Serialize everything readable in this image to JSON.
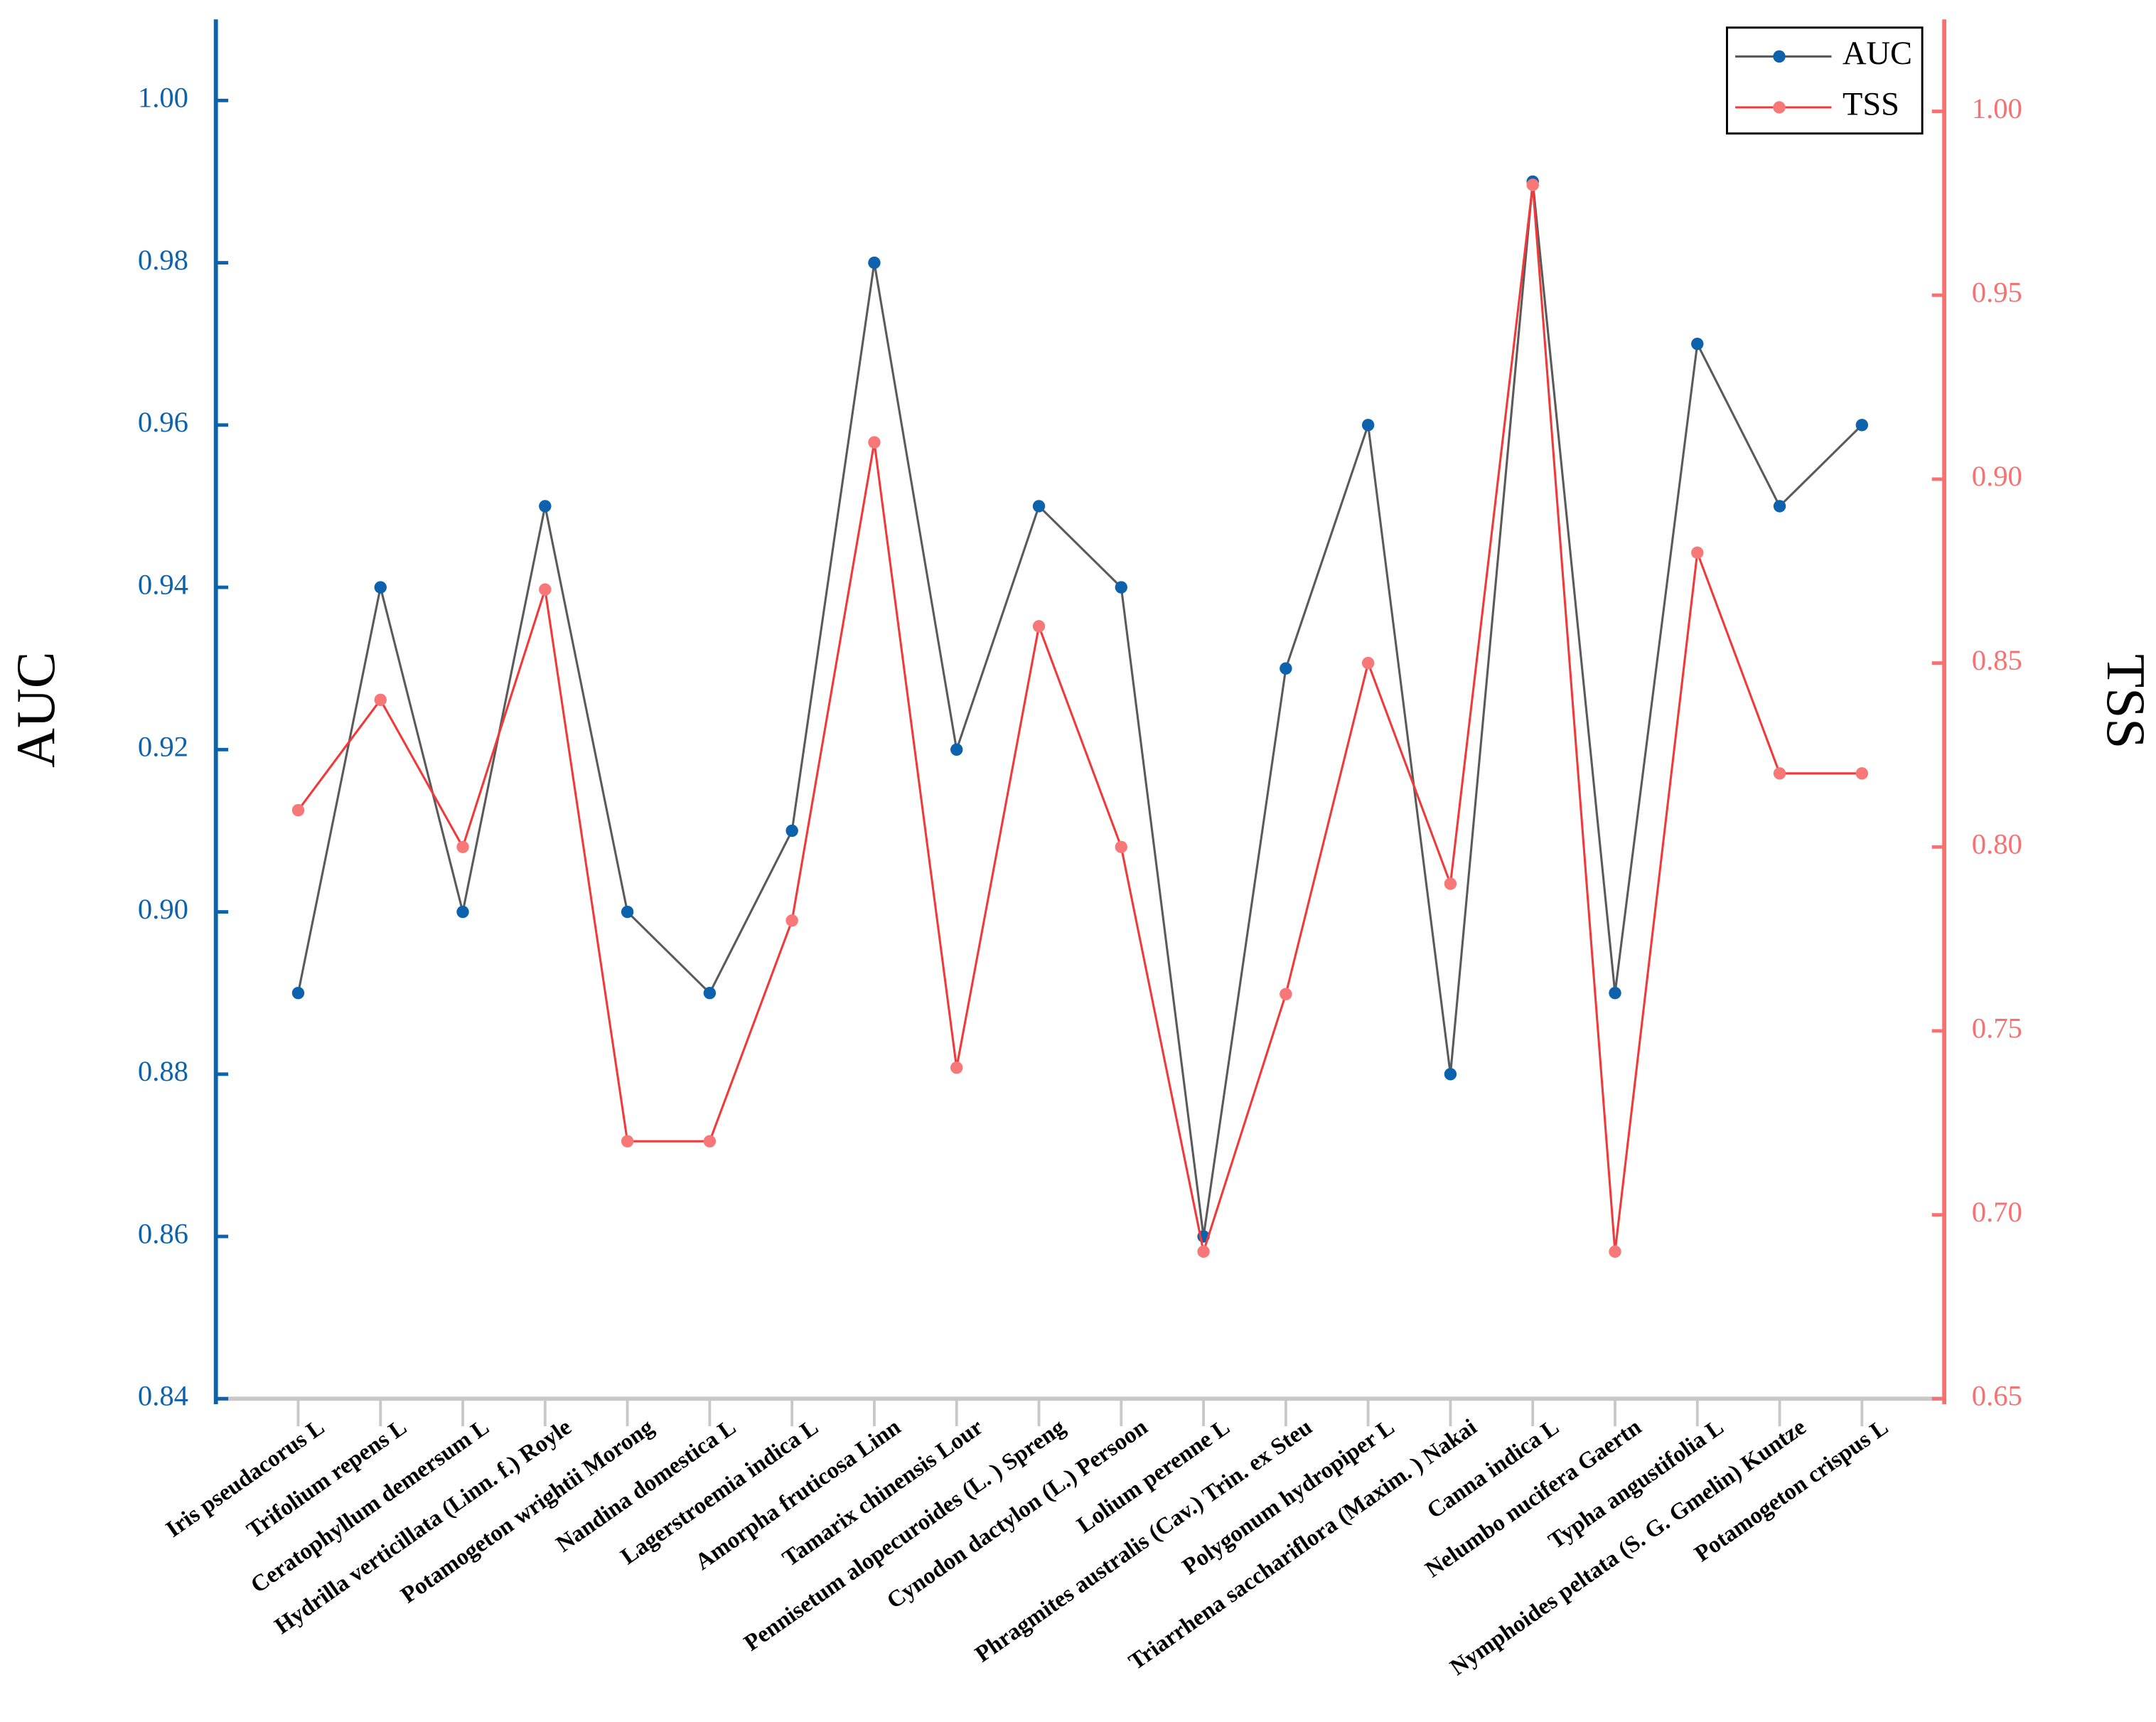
{
  "chart_data": {
    "type": "line",
    "categories": [
      "Iris pseudacorus L",
      "Trifolium repens L",
      "Ceratophyllum demersum L",
      "Hydrilla verticillata (Linn. f.) Royle",
      "Potamogeton wrightii Morong",
      "Nandina domestica L",
      "Lagerstroemia indica L",
      "Amorpha fruticosa Linn",
      "Tamarix chinensis Lour",
      "Pennisetum alopecuroides (L. ) Spreng",
      "Cynodon dactylon (L.) Persoon",
      "Lolium perenne L",
      "Phragmites australis (Cav.) Trin. ex Steu",
      "Polygonum hydropiper L",
      "Triarrhena sacchariflora (Maxim. ) Nakai",
      "Canna indica L",
      "Nelumbo nucifera Gaertn",
      "Typha angustifolia L",
      "Nymphoides peltata (S. G. Gmelin) Kuntze",
      "Potamogeton crispus L"
    ],
    "series": [
      {
        "name": "AUC",
        "color": "#0d62ad",
        "line_color": "#5a5a5a",
        "values": [
          0.89,
          0.94,
          0.9,
          0.95,
          0.9,
          0.89,
          0.91,
          0.98,
          0.92,
          0.95,
          0.94,
          0.86,
          0.93,
          0.96,
          0.88,
          0.99,
          0.89,
          0.97,
          0.95,
          0.96
        ]
      },
      {
        "name": "TSS",
        "color": "#f87878",
        "line_color": "#f03a3a",
        "axis": "y2",
        "values": [
          0.81,
          0.84,
          0.8,
          0.87,
          0.72,
          0.72,
          0.78,
          0.91,
          0.74,
          0.86,
          0.8,
          0.69,
          0.76,
          0.85,
          0.79,
          0.98,
          0.69,
          0.88,
          0.82,
          0.82
        ]
      }
    ],
    "y_label": "AUC",
    "y2_label": "TSS",
    "ylim": [
      0.84,
      1.01
    ],
    "yticks": [
      {
        "value": 0.84,
        "label": "0.84"
      },
      {
        "value": 0.86,
        "label": "0.86"
      },
      {
        "value": 0.88,
        "label": "0.88"
      },
      {
        "value": 0.9,
        "label": "0.90"
      },
      {
        "value": 0.92,
        "label": "0.92"
      },
      {
        "value": 0.94,
        "label": "0.94"
      },
      {
        "value": 0.96,
        "label": "0.96"
      },
      {
        "value": 0.98,
        "label": "0.98"
      },
      {
        "value": 1.0,
        "label": "1.00"
      }
    ],
    "y2lim": [
      0.65,
      1.025
    ],
    "y2ticks": [
      {
        "value": 0.65,
        "label": "0.65"
      },
      {
        "value": 0.7,
        "label": "0.70"
      },
      {
        "value": 0.75,
        "label": "0.75"
      },
      {
        "value": 0.8,
        "label": "0.80"
      },
      {
        "value": 0.85,
        "label": "0.85"
      },
      {
        "value": 0.9,
        "label": "0.90"
      },
      {
        "value": 0.95,
        "label": "0.95"
      },
      {
        "value": 1.0,
        "label": "1.00"
      }
    ],
    "y_axis_color": "#0d62ad",
    "y2_axis_color": "#f87070",
    "legend": "upper right"
  }
}
